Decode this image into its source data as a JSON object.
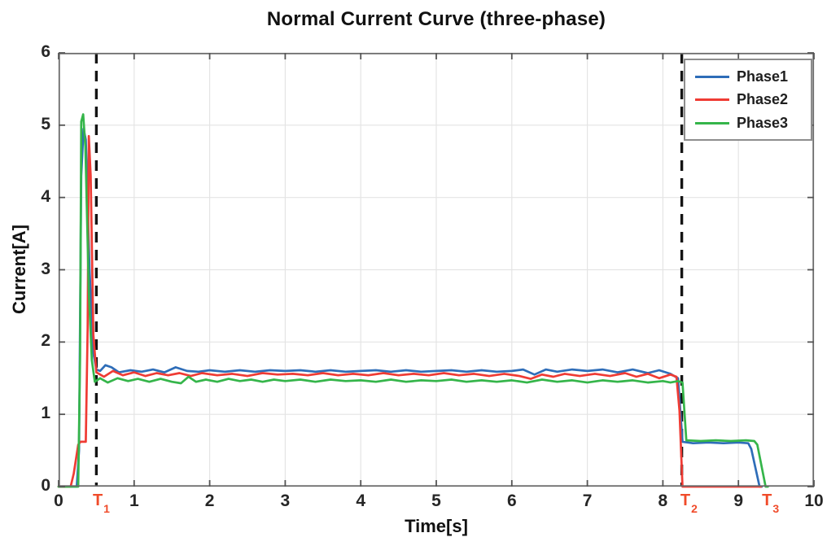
{
  "chart_data": {
    "type": "line",
    "title": "Normal Current Curve (three-phase)",
    "xlabel": "Time[s]",
    "ylabel": "Current[A]",
    "xlim": [
      0,
      10
    ],
    "ylim": [
      0,
      6
    ],
    "x_ticks": [
      0,
      1,
      2,
      3,
      4,
      5,
      6,
      7,
      8,
      9,
      10
    ],
    "y_ticks": [
      0,
      1,
      2,
      3,
      4,
      5,
      6
    ],
    "grid": true,
    "legend_position": "top-right",
    "colors": {
      "grid": "#e4e4e4",
      "axis_box": "#6b6b6b",
      "tick": "#555555",
      "dashed_line": "#141414",
      "annotation": "#F04B2A"
    },
    "annotations": [
      {
        "text": "T",
        "sub": "1",
        "line_x": 0.5,
        "label_x": 0.56,
        "dashed": true
      },
      {
        "text": "T",
        "sub": "2",
        "line_x": 8.25,
        "label_x": 8.34,
        "dashed": true
      },
      {
        "text": "T",
        "sub": "3",
        "line_x": 9.42,
        "label_x": 9.42,
        "dashed": false
      }
    ],
    "series": [
      {
        "name": "Phase1",
        "color": "#2E6DB8",
        "points": [
          [
            0,
            0
          ],
          [
            0.24,
            0
          ],
          [
            0.27,
            0.5
          ],
          [
            0.3,
            4.3
          ],
          [
            0.33,
            4.95
          ],
          [
            0.36,
            4.8
          ],
          [
            0.41,
            3.0
          ],
          [
            0.46,
            1.85
          ],
          [
            0.5,
            1.62
          ],
          [
            0.55,
            1.6
          ],
          [
            0.62,
            1.68
          ],
          [
            0.7,
            1.65
          ],
          [
            0.8,
            1.58
          ],
          [
            0.95,
            1.61
          ],
          [
            1.1,
            1.59
          ],
          [
            1.25,
            1.62
          ],
          [
            1.4,
            1.58
          ],
          [
            1.55,
            1.65
          ],
          [
            1.7,
            1.6
          ],
          [
            1.85,
            1.59
          ],
          [
            2.0,
            1.61
          ],
          [
            2.2,
            1.59
          ],
          [
            2.4,
            1.61
          ],
          [
            2.6,
            1.59
          ],
          [
            2.8,
            1.61
          ],
          [
            3.0,
            1.6
          ],
          [
            3.2,
            1.61
          ],
          [
            3.4,
            1.59
          ],
          [
            3.6,
            1.61
          ],
          [
            3.8,
            1.59
          ],
          [
            4.0,
            1.6
          ],
          [
            4.2,
            1.61
          ],
          [
            4.4,
            1.59
          ],
          [
            4.6,
            1.61
          ],
          [
            4.8,
            1.59
          ],
          [
            5.0,
            1.6
          ],
          [
            5.2,
            1.61
          ],
          [
            5.4,
            1.59
          ],
          [
            5.6,
            1.61
          ],
          [
            5.8,
            1.59
          ],
          [
            6.0,
            1.6
          ],
          [
            6.15,
            1.62
          ],
          [
            6.3,
            1.55
          ],
          [
            6.45,
            1.62
          ],
          [
            6.6,
            1.59
          ],
          [
            6.8,
            1.62
          ],
          [
            7.0,
            1.6
          ],
          [
            7.2,
            1.62
          ],
          [
            7.4,
            1.58
          ],
          [
            7.6,
            1.62
          ],
          [
            7.8,
            1.57
          ],
          [
            7.95,
            1.61
          ],
          [
            8.1,
            1.56
          ],
          [
            8.2,
            1.5
          ],
          [
            8.26,
            0.62
          ],
          [
            8.4,
            0.6
          ],
          [
            8.6,
            0.61
          ],
          [
            8.8,
            0.6
          ],
          [
            9.0,
            0.61
          ],
          [
            9.13,
            0.6
          ],
          [
            9.17,
            0.52
          ],
          [
            9.28,
            0
          ],
          [
            9.31,
            0
          ]
        ]
      },
      {
        "name": "Phase2",
        "color": "#EF3B34",
        "points": [
          [
            0,
            0
          ],
          [
            0.16,
            0
          ],
          [
            0.2,
            0.18
          ],
          [
            0.26,
            0.58
          ],
          [
            0.29,
            0.62
          ],
          [
            0.36,
            0.62
          ],
          [
            0.385,
            2.2
          ],
          [
            0.4,
            4.85
          ],
          [
            0.425,
            4.3
          ],
          [
            0.46,
            2.1
          ],
          [
            0.5,
            1.58
          ],
          [
            0.6,
            1.52
          ],
          [
            0.72,
            1.6
          ],
          [
            0.85,
            1.54
          ],
          [
            1.0,
            1.58
          ],
          [
            1.15,
            1.53
          ],
          [
            1.3,
            1.57
          ],
          [
            1.45,
            1.54
          ],
          [
            1.6,
            1.57
          ],
          [
            1.75,
            1.53
          ],
          [
            1.9,
            1.57
          ],
          [
            2.1,
            1.54
          ],
          [
            2.3,
            1.56
          ],
          [
            2.5,
            1.53
          ],
          [
            2.7,
            1.57
          ],
          [
            2.9,
            1.55
          ],
          [
            3.1,
            1.56
          ],
          [
            3.3,
            1.54
          ],
          [
            3.5,
            1.57
          ],
          [
            3.7,
            1.54
          ],
          [
            3.9,
            1.56
          ],
          [
            4.1,
            1.54
          ],
          [
            4.3,
            1.57
          ],
          [
            4.5,
            1.54
          ],
          [
            4.7,
            1.56
          ],
          [
            4.9,
            1.54
          ],
          [
            5.1,
            1.57
          ],
          [
            5.3,
            1.54
          ],
          [
            5.5,
            1.56
          ],
          [
            5.7,
            1.53
          ],
          [
            5.9,
            1.56
          ],
          [
            6.1,
            1.53
          ],
          [
            6.25,
            1.49
          ],
          [
            6.4,
            1.55
          ],
          [
            6.55,
            1.52
          ],
          [
            6.7,
            1.56
          ],
          [
            6.9,
            1.53
          ],
          [
            7.1,
            1.56
          ],
          [
            7.3,
            1.53
          ],
          [
            7.5,
            1.57
          ],
          [
            7.65,
            1.52
          ],
          [
            7.8,
            1.56
          ],
          [
            7.95,
            1.5
          ],
          [
            8.1,
            1.55
          ],
          [
            8.18,
            1.52
          ],
          [
            8.22,
            1.05
          ],
          [
            8.26,
            0
          ],
          [
            8.6,
            0
          ],
          [
            9.0,
            0
          ],
          [
            9.3,
            0
          ]
        ]
      },
      {
        "name": "Phase3",
        "color": "#35B54A",
        "points": [
          [
            0,
            0
          ],
          [
            0.26,
            0
          ],
          [
            0.285,
            1.8
          ],
          [
            0.3,
            5.05
          ],
          [
            0.325,
            5.15
          ],
          [
            0.355,
            4.7
          ],
          [
            0.4,
            2.7
          ],
          [
            0.44,
            1.75
          ],
          [
            0.48,
            1.45
          ],
          [
            0.55,
            1.5
          ],
          [
            0.65,
            1.44
          ],
          [
            0.78,
            1.5
          ],
          [
            0.92,
            1.46
          ],
          [
            1.05,
            1.49
          ],
          [
            1.2,
            1.45
          ],
          [
            1.35,
            1.49
          ],
          [
            1.5,
            1.45
          ],
          [
            1.62,
            1.43
          ],
          [
            1.72,
            1.52
          ],
          [
            1.82,
            1.45
          ],
          [
            1.95,
            1.48
          ],
          [
            2.1,
            1.45
          ],
          [
            2.25,
            1.49
          ],
          [
            2.4,
            1.46
          ],
          [
            2.55,
            1.48
          ],
          [
            2.7,
            1.45
          ],
          [
            2.85,
            1.48
          ],
          [
            3.0,
            1.46
          ],
          [
            3.2,
            1.48
          ],
          [
            3.4,
            1.45
          ],
          [
            3.6,
            1.48
          ],
          [
            3.8,
            1.46
          ],
          [
            4.0,
            1.47
          ],
          [
            4.2,
            1.45
          ],
          [
            4.4,
            1.48
          ],
          [
            4.6,
            1.45
          ],
          [
            4.8,
            1.47
          ],
          [
            5.0,
            1.46
          ],
          [
            5.2,
            1.48
          ],
          [
            5.4,
            1.45
          ],
          [
            5.6,
            1.47
          ],
          [
            5.8,
            1.45
          ],
          [
            6.0,
            1.47
          ],
          [
            6.2,
            1.44
          ],
          [
            6.4,
            1.48
          ],
          [
            6.6,
            1.45
          ],
          [
            6.8,
            1.47
          ],
          [
            7.0,
            1.44
          ],
          [
            7.2,
            1.47
          ],
          [
            7.4,
            1.45
          ],
          [
            7.6,
            1.47
          ],
          [
            7.8,
            1.44
          ],
          [
            8.0,
            1.46
          ],
          [
            8.1,
            1.44
          ],
          [
            8.2,
            1.46
          ],
          [
            8.26,
            1.44
          ],
          [
            8.31,
            0.64
          ],
          [
            8.5,
            0.63
          ],
          [
            8.7,
            0.64
          ],
          [
            8.9,
            0.63
          ],
          [
            9.1,
            0.64
          ],
          [
            9.21,
            0.63
          ],
          [
            9.25,
            0.58
          ],
          [
            9.36,
            0
          ],
          [
            9.39,
            0
          ]
        ]
      }
    ]
  }
}
